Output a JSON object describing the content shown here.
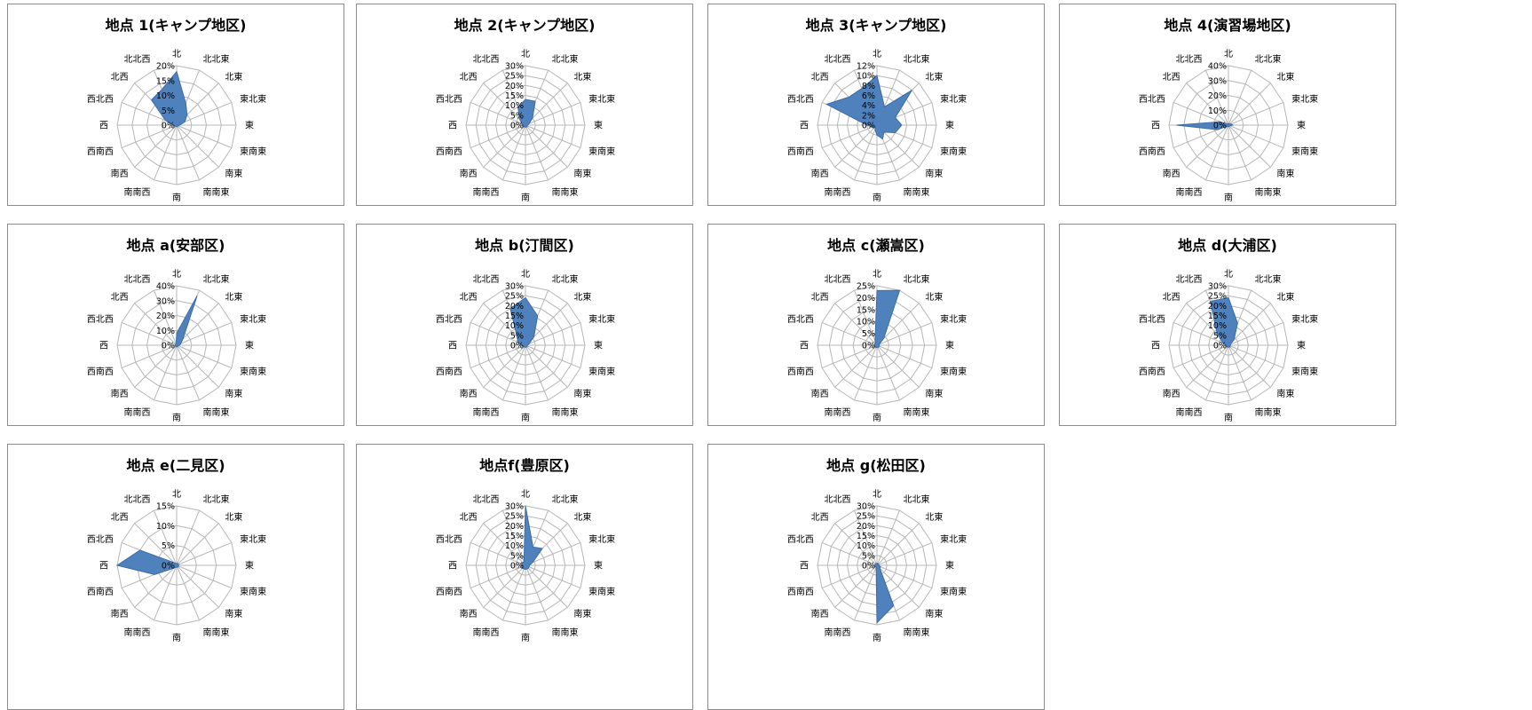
{
  "chart_data": [
    {
      "type": "radar",
      "title": "地点 1(キャンプ地区)",
      "categories": [
        "北",
        "北北東",
        "北東",
        "東北東",
        "東",
        "東南東",
        "南東",
        "南南東",
        "南",
        "南南西",
        "南西",
        "西南西",
        "西",
        "西北西",
        "北西",
        "北北西"
      ],
      "rmax": 20,
      "ticks": [
        "0%",
        "5%",
        "10%",
        "15%",
        "20%"
      ],
      "values": [
        18,
        8,
        5,
        3,
        1,
        0.5,
        0.5,
        0.5,
        0.5,
        0.5,
        0.5,
        0.5,
        1,
        4,
        12,
        13
      ]
    },
    {
      "type": "radar",
      "title": "地点 2(キャンプ地区)",
      "categories": [
        "北",
        "北北東",
        "北東",
        "東北東",
        "東",
        "東南東",
        "南東",
        "南南東",
        "南",
        "南南西",
        "南西",
        "西南西",
        "西",
        "西北西",
        "北西",
        "北北西"
      ],
      "rmax": 30,
      "ticks": [
        "0%",
        "5%",
        "10%",
        "15%",
        "20%",
        "25%",
        "30%"
      ],
      "values": [
        13,
        13,
        5,
        2,
        1,
        1,
        1,
        1,
        1,
        1,
        1,
        1,
        1,
        2,
        4,
        10
      ]
    },
    {
      "type": "radar",
      "title": "地点 3(キャンプ地区)",
      "categories": [
        "北",
        "北北東",
        "北東",
        "東北東",
        "東",
        "東南東",
        "南東",
        "南南東",
        "南",
        "南南西",
        "南西",
        "西南西",
        "西",
        "西北西",
        "北西",
        "北北西"
      ],
      "rmax": 12,
      "ticks": [
        "0%",
        "2%",
        "4%",
        "6%",
        "8%",
        "10%",
        "12%"
      ],
      "values": [
        10,
        4,
        10,
        4,
        5,
        4,
        2,
        3,
        2,
        1,
        0.5,
        1,
        2,
        11,
        8,
        8
      ]
    },
    {
      "type": "radar",
      "title": "地点 4(演習場地区)",
      "categories": [
        "北",
        "北北東",
        "北東",
        "東北東",
        "東",
        "東南東",
        "南東",
        "南南東",
        "南",
        "南南西",
        "南西",
        "西南西",
        "西",
        "西北西",
        "北西",
        "北北西"
      ],
      "rmax": 40,
      "ticks": [
        "0%",
        "10%",
        "20%",
        "30%",
        "40%"
      ],
      "values": [
        1,
        1,
        1,
        2,
        3,
        1,
        1,
        1,
        1,
        1,
        1,
        8,
        35,
        6,
        1,
        1
      ]
    },
    {
      "type": "radar",
      "title": "地点 a(安部区)",
      "categories": [
        "北",
        "北北東",
        "北東",
        "東北東",
        "東",
        "東南東",
        "南東",
        "南南東",
        "南",
        "南南西",
        "南西",
        "西南西",
        "西",
        "西北西",
        "北西",
        "北北西"
      ],
      "rmax": 40,
      "ticks": [
        "0%",
        "10%",
        "20%",
        "30%",
        "40%"
      ],
      "values": [
        8,
        36,
        6,
        3,
        2,
        1,
        1,
        1,
        1,
        1,
        1,
        1,
        1,
        1,
        1,
        1
      ]
    },
    {
      "type": "radar",
      "title": "地点 b(汀間区)",
      "categories": [
        "北",
        "北北東",
        "北東",
        "東北東",
        "東",
        "東南東",
        "南東",
        "南南東",
        "南",
        "南南西",
        "南西",
        "西南西",
        "西",
        "西北西",
        "北西",
        "北北西"
      ],
      "rmax": 30,
      "ticks": [
        "0%",
        "5%",
        "10%",
        "15%",
        "20%",
        "25%",
        "30%"
      ],
      "values": [
        24,
        16,
        6,
        2,
        1,
        1,
        1,
        1,
        1,
        1,
        1,
        1,
        2,
        4,
        6,
        20
      ]
    },
    {
      "type": "radar",
      "title": "地点 c(瀬嵩区)",
      "categories": [
        "北",
        "北北東",
        "北東",
        "東北東",
        "東",
        "東南東",
        "南東",
        "南南東",
        "南",
        "南南西",
        "南西",
        "西南西",
        "西",
        "西北西",
        "北西",
        "北北西"
      ],
      "rmax": 25,
      "ticks": [
        "0%",
        "5%",
        "10%",
        "15%",
        "20%",
        "25%"
      ],
      "values": [
        23,
        26,
        4,
        1,
        1,
        1,
        1,
        1,
        1,
        1,
        1,
        1,
        1,
        1,
        1,
        2
      ]
    },
    {
      "type": "radar",
      "title": "地点 d(大浦区)",
      "categories": [
        "北",
        "北北東",
        "北東",
        "東北東",
        "東",
        "東南東",
        "南東",
        "南南東",
        "南",
        "南南西",
        "南西",
        "西南西",
        "西",
        "西北西",
        "北西",
        "北北西"
      ],
      "rmax": 30,
      "ticks": [
        "0%",
        "5%",
        "10%",
        "15%",
        "20%",
        "25%",
        "30%"
      ],
      "values": [
        24,
        12,
        4,
        1,
        1,
        1,
        1,
        1,
        1,
        1,
        1,
        1,
        1,
        3,
        8,
        24
      ]
    },
    {
      "type": "radar",
      "title": "地点 e(二見区)",
      "categories": [
        "北",
        "北北東",
        "北東",
        "東北東",
        "東",
        "東南東",
        "南東",
        "南南東",
        "南",
        "南南西",
        "南西",
        "西南西",
        "西",
        "西北西",
        "北西",
        "北北西"
      ],
      "rmax": 15,
      "ticks": [
        "0%",
        "5%",
        "10%",
        "15%"
      ],
      "values": [
        0.5,
        0.5,
        0.5,
        0.5,
        0.5,
        0.5,
        0.5,
        0.5,
        0.5,
        0.5,
        1,
        6,
        15,
        10,
        1,
        0.5
      ]
    },
    {
      "type": "radar",
      "title": "地点f(豊原区)",
      "categories": [
        "北",
        "北北東",
        "北東",
        "東北東",
        "東",
        "東南東",
        "南東",
        "南南東",
        "南",
        "南南西",
        "南西",
        "西南西",
        "西",
        "西北西",
        "北西",
        "北北西"
      ],
      "rmax": 30,
      "ticks": [
        "0%",
        "5%",
        "10%",
        "15%",
        "20%",
        "25%",
        "30%"
      ],
      "values": [
        30,
        10,
        12,
        4,
        2,
        2,
        2,
        2,
        2,
        2,
        2,
        2,
        2,
        2,
        2,
        2
      ]
    },
    {
      "type": "radar",
      "title": "地点 g(松田区)",
      "categories": [
        "北",
        "北北東",
        "北東",
        "東北東",
        "東",
        "東南東",
        "南東",
        "南南東",
        "南",
        "南南西",
        "南西",
        "西南西",
        "西",
        "西北西",
        "北西",
        "北北西"
      ],
      "rmax": 30,
      "ticks": [
        "0%",
        "5%",
        "10%",
        "15%",
        "20%",
        "25%",
        "30%"
      ],
      "values": [
        1,
        1,
        1,
        1,
        1,
        2,
        2,
        22,
        29,
        1,
        1,
        1,
        1,
        1,
        1,
        1
      ]
    }
  ],
  "colors": {
    "area_fill": "#4f81bd",
    "grid": "#b7b7b7",
    "border": "#8c8c8c"
  }
}
